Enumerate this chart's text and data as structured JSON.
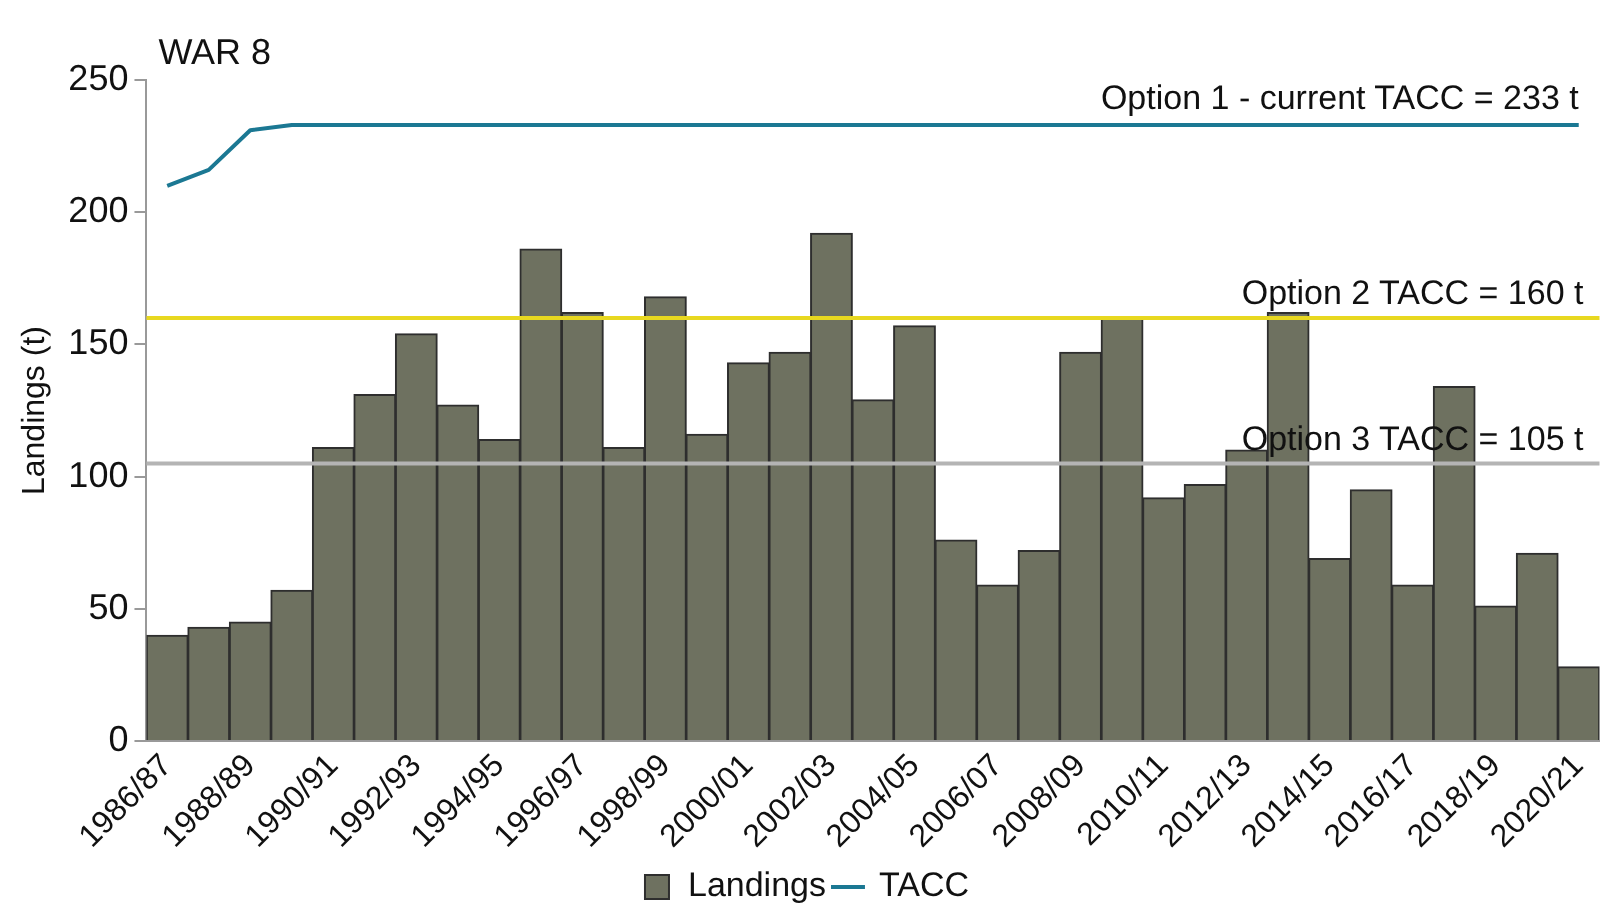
{
  "chart_data": {
    "type": "bar",
    "title": "WAR 8",
    "ylabel": "Landings (t)",
    "categories": [
      "1986/87",
      null,
      "1988/89",
      null,
      "1990/91",
      null,
      "1992/93",
      null,
      "1994/95",
      null,
      "1996/97",
      null,
      "1998/99",
      null,
      "2000/01",
      null,
      "2002/03",
      null,
      "2004/05",
      null,
      "2006/07",
      null,
      "2008/09",
      null,
      "2010/11",
      null,
      "2012/13",
      null,
      "2014/15",
      null,
      "2016/17",
      null,
      "2018/19",
      null,
      "2020/21"
    ],
    "series": [
      {
        "name": "Landings",
        "color": "#6e7160",
        "values": [
          40,
          43,
          45,
          57,
          111,
          131,
          154,
          127,
          114,
          186,
          162,
          111,
          168,
          116,
          143,
          147,
          192,
          129,
          157,
          76,
          59,
          72,
          147,
          160,
          92,
          97,
          110,
          162,
          69,
          95,
          59,
          134,
          51,
          71,
          28
        ]
      },
      {
        "name": "TACC",
        "type": "line",
        "color": "#1b7893",
        "values": [
          210,
          216,
          231,
          233,
          233,
          233,
          233,
          233,
          233,
          233,
          233,
          233,
          233,
          233,
          233,
          233,
          233,
          233,
          233,
          233,
          233,
          233,
          233,
          233,
          233,
          233,
          233,
          233,
          233,
          233,
          233,
          233,
          233,
          233,
          233
        ]
      }
    ],
    "ylim": [
      0,
      250
    ],
    "yticks": [
      0,
      50,
      100,
      150,
      200,
      250
    ],
    "ref_lines": [
      {
        "axis": "y",
        "value": 160,
        "label": "Option 2 TACC = 160 t",
        "color": "#e8d820"
      },
      {
        "axis": "y",
        "value": 105,
        "label": "Option 3 TACC = 105 t",
        "color": "#b4b4b4"
      }
    ],
    "annotations": [
      {
        "text": "Option 1 - current TACC = 233 t",
        "x": "2020/21",
        "y": 233
      }
    ],
    "legend": "bottom",
    "grid": false,
    "marker": "none"
  }
}
